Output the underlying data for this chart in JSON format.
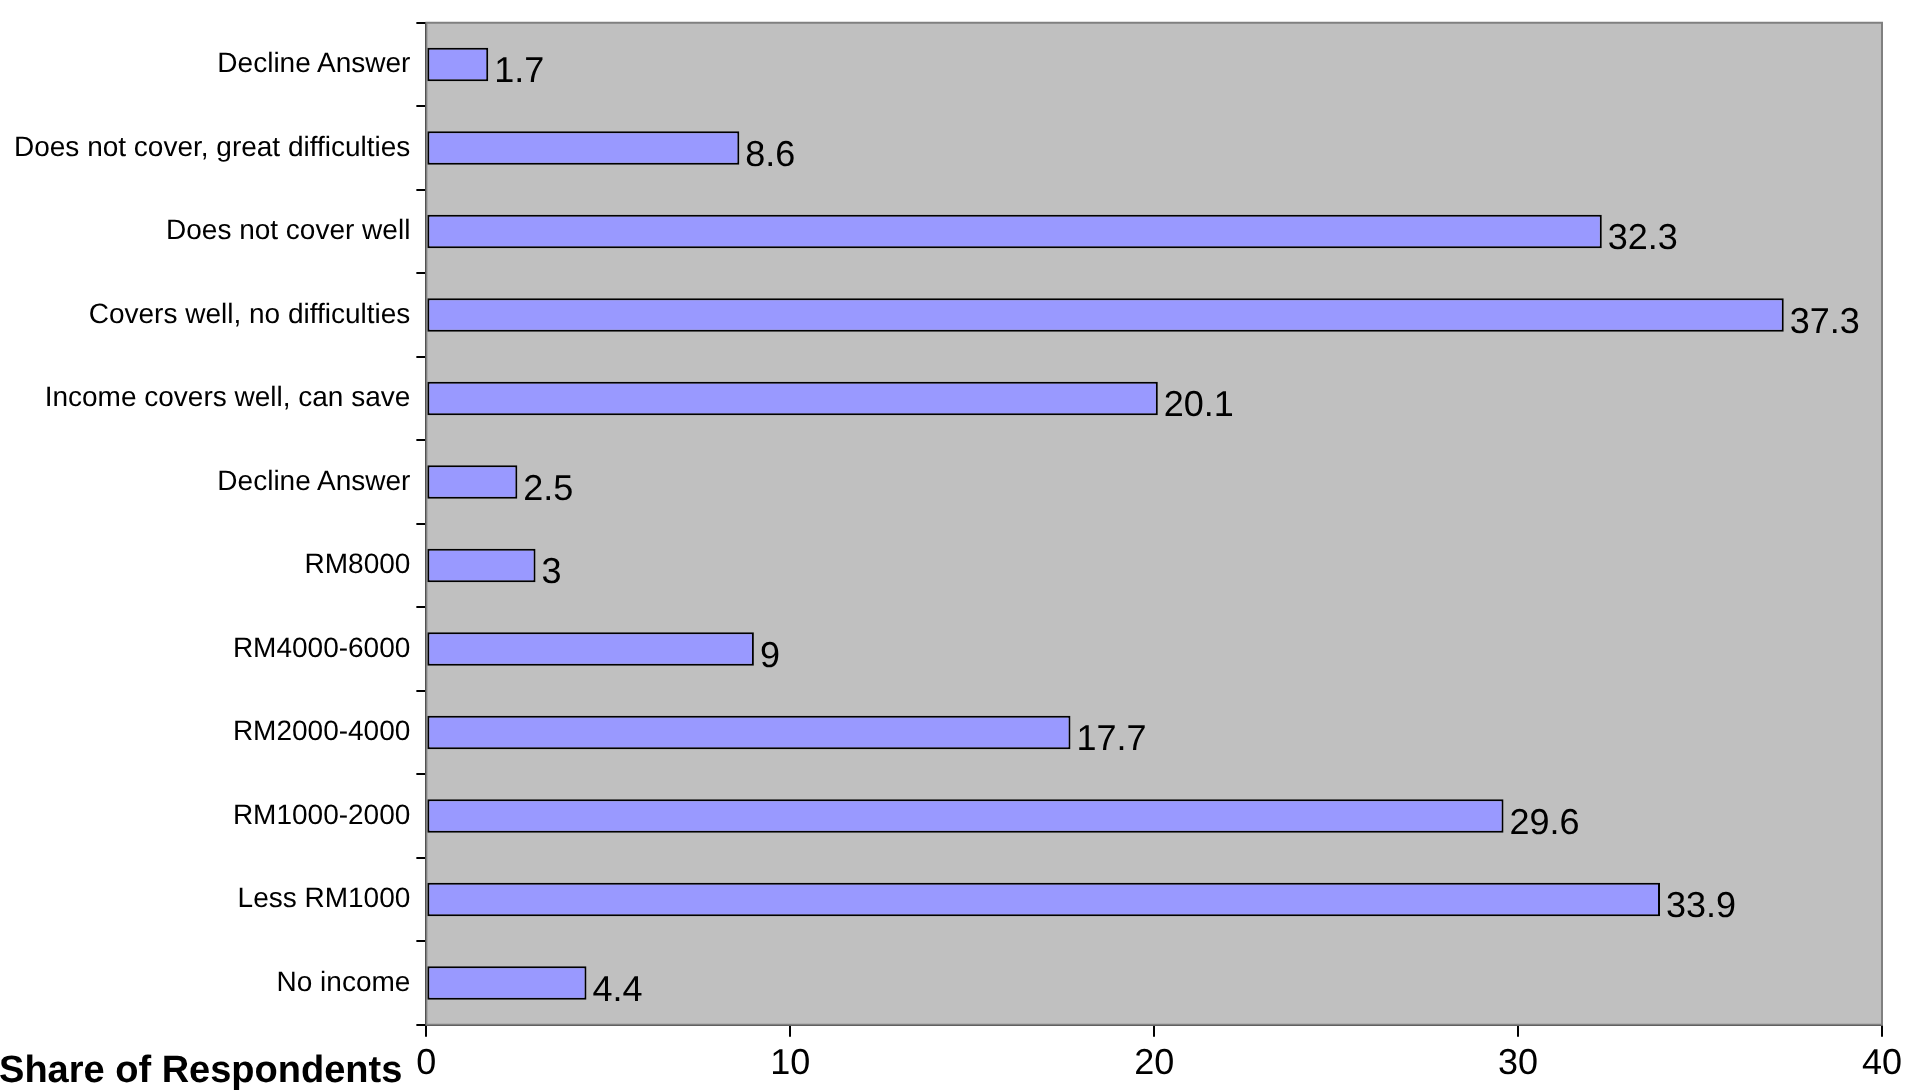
{
  "chart_data": {
    "type": "bar",
    "orientation": "horizontal",
    "xlabel": "Share of Respondents",
    "categories": [
      "Decline Answer",
      "Does not cover, great difficulties",
      "Does not cover well",
      "Covers well, no difficulties",
      "Income covers well, can save",
      "Decline Answer",
      "RM8000",
      "RM4000-6000",
      "RM2000-4000",
      "RM1000-2000",
      "Less RM1000",
      "No income"
    ],
    "values": [
      1.7,
      8.6,
      32.3,
      37.3,
      20.1,
      2.5,
      3,
      9,
      17.7,
      29.6,
      33.9,
      4.4
    ],
    "color": "#9999ff",
    "xlim": [
      0,
      40
    ],
    "xticks": [
      0,
      10,
      20,
      30,
      40
    ],
    "data_labels": true,
    "legend": false
  }
}
